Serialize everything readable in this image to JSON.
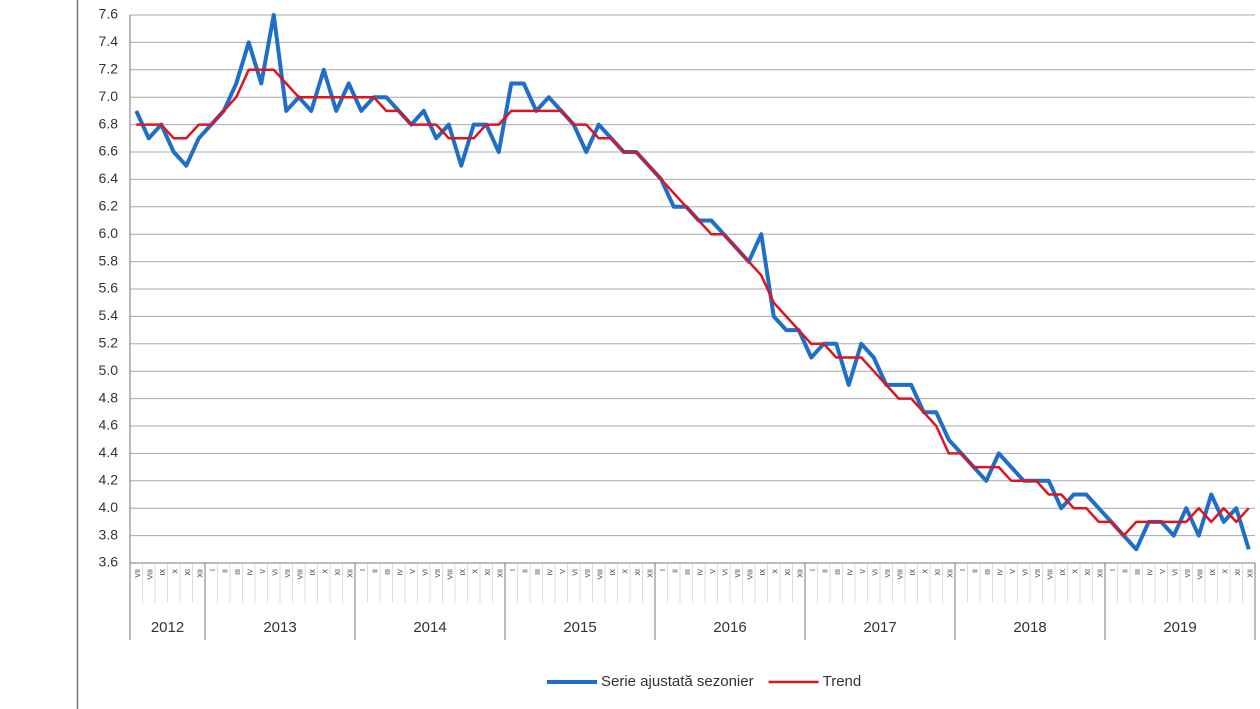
{
  "chart_data": {
    "type": "line",
    "categories": [
      "VII",
      "VIII",
      "IX",
      "X",
      "XI",
      "XII",
      "I",
      "II",
      "III",
      "IV",
      "V",
      "VI",
      "VII",
      "VIII",
      "IX",
      "X",
      "XI",
      "XII",
      "I",
      "II",
      "III",
      "IV",
      "V",
      "VI",
      "VII",
      "VIII",
      "IX",
      "X",
      "XI",
      "XII",
      "I",
      "II",
      "III",
      "IV",
      "V",
      "VI",
      "VII",
      "VIII",
      "IX",
      "X",
      "XI",
      "XII",
      "I",
      "II",
      "III",
      "IV",
      "V",
      "VI",
      "VII",
      "VIII",
      "IX",
      "X",
      "XI",
      "XII",
      "I",
      "II",
      "III",
      "IV",
      "V",
      "VI",
      "VII",
      "VIII",
      "IX",
      "X",
      "XI",
      "XII",
      "I",
      "II",
      "III",
      "IV",
      "V",
      "VI",
      "VII",
      "VIII",
      "IX",
      "X",
      "XI",
      "XII",
      "I",
      "II",
      "III",
      "IV",
      "V",
      "VI",
      "VII",
      "VIII",
      "IX",
      "X",
      "XI",
      "XII"
    ],
    "years": [
      "2012",
      "2013",
      "2014",
      "2015",
      "2016",
      "2017",
      "2018",
      "2019"
    ],
    "series": [
      {
        "name": "Serie ajustată sezonier",
        "color": "#1f6fc8",
        "values": [
          6.9,
          6.7,
          6.8,
          6.6,
          6.5,
          6.7,
          6.8,
          6.9,
          7.1,
          7.4,
          7.1,
          7.6,
          6.9,
          7.0,
          6.9,
          7.2,
          6.9,
          7.1,
          6.9,
          7.0,
          7.0,
          6.9,
          6.8,
          6.9,
          6.7,
          6.8,
          6.5,
          6.8,
          6.8,
          6.6,
          7.1,
          7.1,
          6.9,
          7.0,
          6.9,
          6.8,
          6.6,
          6.8,
          6.7,
          6.6,
          6.6,
          6.5,
          6.4,
          6.2,
          6.2,
          6.1,
          6.1,
          6.0,
          5.9,
          5.8,
          6.0,
          5.4,
          5.3,
          5.3,
          5.1,
          5.2,
          5.2,
          4.9,
          5.2,
          5.1,
          4.9,
          4.9,
          4.9,
          4.7,
          4.7,
          4.5,
          4.4,
          4.3,
          4.2,
          4.4,
          4.3,
          4.2,
          4.2,
          4.2,
          4.0,
          4.1,
          4.1,
          4.0,
          3.9,
          3.8,
          3.7,
          3.9,
          3.9,
          3.8,
          4.0,
          3.8,
          4.1,
          3.9,
          4.0,
          3.7
        ]
      },
      {
        "name": "Trend",
        "color": "#e0141e",
        "values": [
          6.8,
          6.8,
          6.8,
          6.7,
          6.7,
          6.8,
          6.8,
          6.9,
          7.0,
          7.2,
          7.2,
          7.2,
          7.1,
          7.0,
          7.0,
          7.0,
          7.0,
          7.0,
          7.0,
          7.0,
          6.9,
          6.9,
          6.8,
          6.8,
          6.8,
          6.7,
          6.7,
          6.7,
          6.8,
          6.8,
          6.9,
          6.9,
          6.9,
          6.9,
          6.9,
          6.8,
          6.8,
          6.7,
          6.7,
          6.6,
          6.6,
          6.5,
          6.4,
          6.3,
          6.2,
          6.1,
          6.0,
          6.0,
          5.9,
          5.8,
          5.7,
          5.5,
          5.4,
          5.3,
          5.2,
          5.2,
          5.1,
          5.1,
          5.1,
          5.0,
          4.9,
          4.8,
          4.8,
          4.7,
          4.6,
          4.4,
          4.4,
          4.3,
          4.3,
          4.3,
          4.2,
          4.2,
          4.2,
          4.1,
          4.1,
          4.0,
          4.0,
          3.9,
          3.9,
          3.8,
          3.9,
          3.9,
          3.9,
          3.9,
          3.9,
          4.0,
          3.9,
          4.0,
          3.9,
          4.0
        ]
      }
    ],
    "ylim": [
      3.6,
      7.6
    ],
    "yticks": [
      3.6,
      3.8,
      {
        "value": 4.0,
        "label": "4.0"
      },
      4.2,
      4.4,
      4.6,
      4.8,
      {
        "value": 5.0,
        "label": "5.0"
      },
      5.2,
      5.4,
      5.6,
      5.8,
      {
        "value": 6.0,
        "label": "6.0"
      },
      6.2,
      6.4,
      6.6,
      6.8,
      {
        "value": 7.0,
        "label": "7.0"
      },
      7.2,
      7.4,
      7.6
    ],
    "grid": true
  }
}
